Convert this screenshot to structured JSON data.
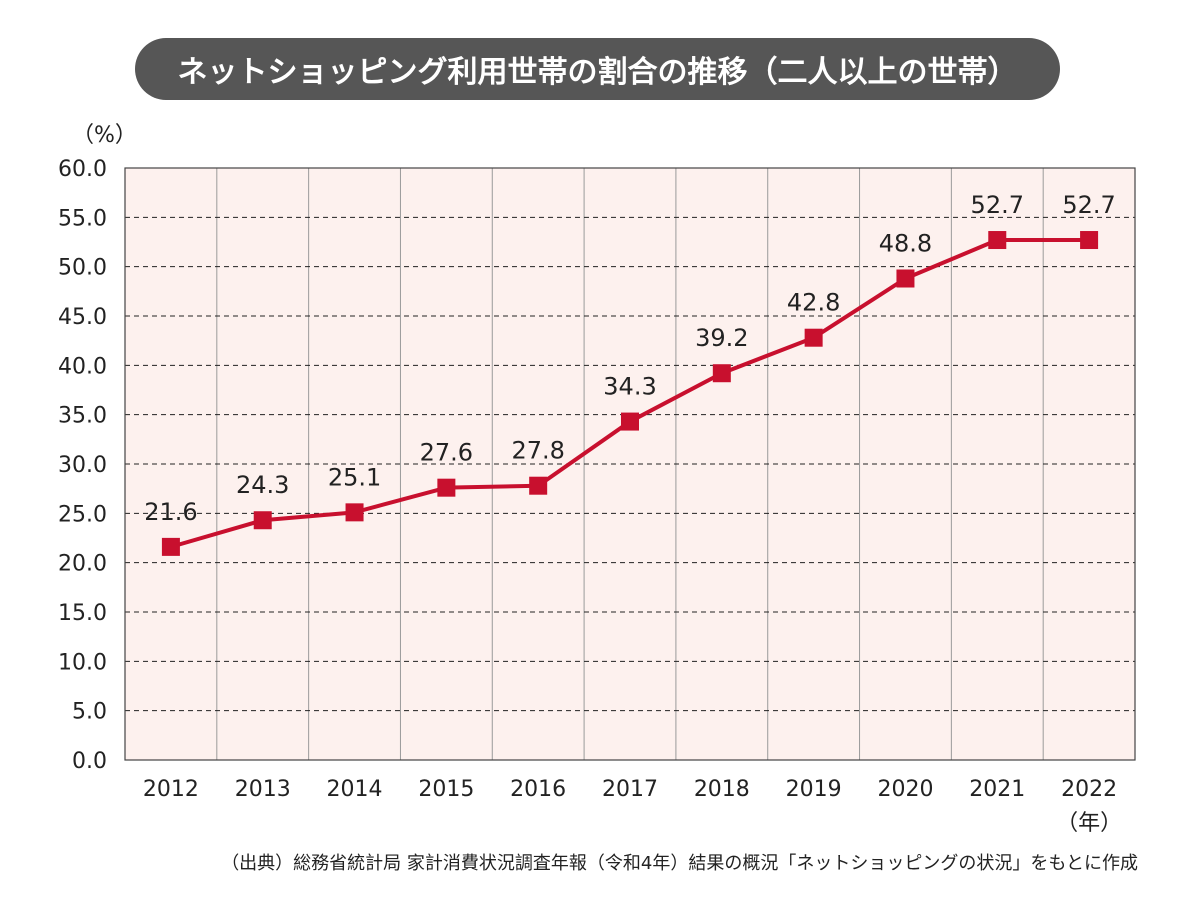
{
  "title": "ネットショッピング利用世帯の割合の推移（二人以上の世帯）",
  "y_unit_label": "（%）",
  "x_unit_label": "（年）",
  "footer": "（出典）総務省統計局 家計消費状況調査年報（令和4年）結果の概況「ネットショッピングの状況」をもとに作成",
  "colors": {
    "line": "#c8102e",
    "plot_background": "#fdf1ee",
    "title_background": "#565656",
    "grid": "#222222"
  },
  "chart_data": {
    "type": "line",
    "categories": [
      "2012",
      "2013",
      "2014",
      "2015",
      "2016",
      "2017",
      "2018",
      "2019",
      "2020",
      "2021",
      "2022"
    ],
    "series": [
      {
        "values": [
          21.6,
          24.3,
          25.1,
          27.6,
          27.8,
          34.3,
          39.2,
          42.8,
          48.8,
          52.7,
          52.7
        ]
      }
    ],
    "data_labels": [
      "21.6",
      "24.3",
      "25.1",
      "27.6",
      "27.8",
      "34.3",
      "39.2",
      "42.8",
      "48.8",
      "52.7",
      "52.7"
    ],
    "y_ticks": [
      "0.0",
      "5.0",
      "10.0",
      "15.0",
      "20.0",
      "25.0",
      "30.0",
      "35.0",
      "40.0",
      "45.0",
      "50.0",
      "55.0",
      "60.0"
    ],
    "ylim": [
      0,
      60
    ],
    "grid": true,
    "legend": "none"
  }
}
